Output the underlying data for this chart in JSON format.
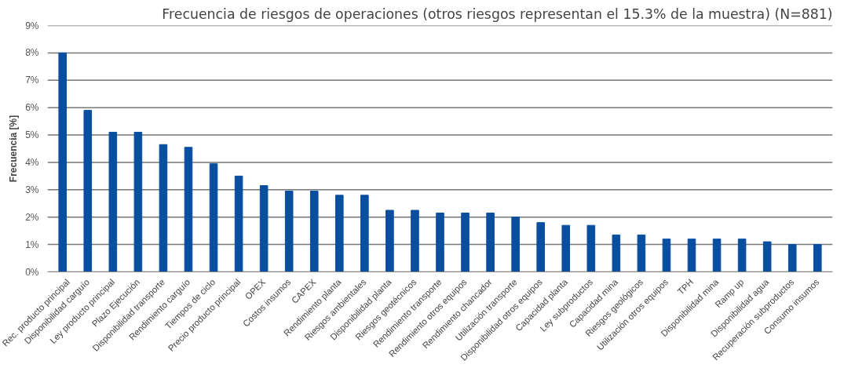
{
  "chart_data": {
    "type": "bar",
    "title": "Frecuencia de riesgos de operaciones (otros riesgos representan el 15.3% de la muestra) (N=881)",
    "ylabel": "Frecuencia [%]",
    "categories": [
      "Rec. producto principal",
      "Disponibilidad carguío",
      "Ley producto principal",
      "Plazo Ejecución",
      "Disponibilidad transporte",
      "Rendimiento carguío",
      "Tiempos de ciclo",
      "Precio producto principal",
      "OPEX",
      "Costos insumos",
      "CAPEX",
      "Rendimiento planta",
      "Riesgos ambientales",
      "Disponibilidad planta",
      "Riesgos geotécnicos",
      "Rendimiento transporte",
      "Rendimiento otros equipos",
      "Rendimiento chancador",
      "Utilización transporte",
      "Disponibilidad otros equipos",
      "Capacidad planta",
      "Ley subproductos",
      "Capacidad mina",
      "Riesgos geológicos",
      "Utilización otros equipos",
      "TPH",
      "Disponibilidad mina",
      "Ramp up",
      "Disponibilidad agua",
      "Recuperación subproductos",
      "Consumo insumos"
    ],
    "values": [
      8.0,
      5.9,
      5.1,
      5.1,
      4.65,
      4.55,
      3.95,
      3.5,
      3.15,
      2.95,
      2.95,
      2.8,
      2.8,
      2.25,
      2.25,
      2.15,
      2.15,
      2.15,
      2.0,
      1.8,
      1.7,
      1.7,
      1.35,
      1.35,
      1.2,
      1.2,
      1.2,
      1.2,
      1.1,
      1.0,
      1.0
    ],
    "color": "#0a4ea0",
    "ylim": [
      0,
      9
    ],
    "yticks": [
      {
        "value": 0,
        "label": "0%"
      },
      {
        "value": 1,
        "label": "1%"
      },
      {
        "value": 2,
        "label": "2%"
      },
      {
        "value": 3,
        "label": "3%"
      },
      {
        "value": 4,
        "label": "4%"
      },
      {
        "value": 5,
        "label": "5%"
      },
      {
        "value": 6,
        "label": "6%"
      },
      {
        "value": 7,
        "label": "7%"
      },
      {
        "value": 8,
        "label": "8%"
      },
      {
        "value": 9,
        "label": "9%"
      }
    ],
    "grid": "y"
  }
}
